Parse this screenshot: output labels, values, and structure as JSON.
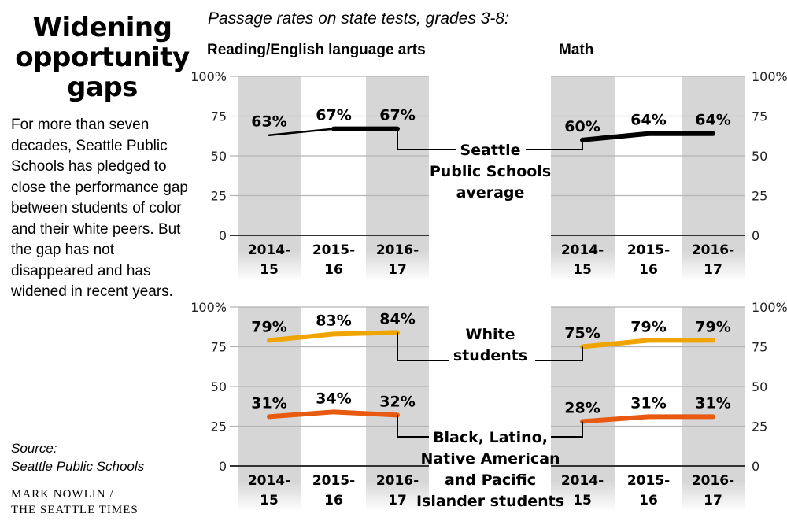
{
  "title": "Widening opportunity gaps",
  "intro": "For more than seven decades, Seattle Public Schools has pledged to close the performance gap between students of color and their white peers. But the gap has not disappeared and has widened in recent years.",
  "source_label": "Source:",
  "source": "Seattle Public Schools",
  "credit_line1": "MARK NOWLIN /",
  "credit_line2": "THE SEATTLE TIMES",
  "subtitle": "Passage rates on state tests, grades 3-8:",
  "colors": {
    "sps": "#000000",
    "white": "#f0a400",
    "poc": "#e85a10",
    "band": "#d6d6d6",
    "grid": "#b5b5b5"
  },
  "callouts": {
    "sps": [
      "Seattle",
      "Public Schools",
      "average"
    ],
    "white": [
      "White",
      "students"
    ],
    "poc": [
      "Black, Latino,",
      "Native American",
      "and Pacific",
      "Islander students"
    ]
  },
  "chart_data": [
    {
      "type": "line",
      "title": "Reading/English language arts",
      "row": "top",
      "side": "left",
      "categories": [
        [
          "2014-",
          "15"
        ],
        [
          "2015-",
          "16"
        ],
        [
          "2016-",
          "17"
        ]
      ],
      "yticks": [
        "100%",
        "75",
        "50",
        "25",
        "0"
      ],
      "ylim": [
        0,
        100
      ],
      "series": [
        {
          "name": "Seattle Public Schools average",
          "key": "sps",
          "values": [
            63,
            67,
            67
          ],
          "labels": [
            "63%",
            "67%",
            "67%"
          ]
        }
      ]
    },
    {
      "type": "line",
      "title": "Math",
      "row": "top",
      "side": "right",
      "categories": [
        [
          "2014-",
          "15"
        ],
        [
          "2015-",
          "16"
        ],
        [
          "2016-",
          "17"
        ]
      ],
      "yticks": [
        "100%",
        "75",
        "50",
        "25",
        "0"
      ],
      "ylim": [
        0,
        100
      ],
      "series": [
        {
          "name": "Seattle Public Schools average",
          "key": "sps",
          "values": [
            60,
            64,
            64
          ],
          "labels": [
            "60%",
            "64%",
            "64%"
          ]
        }
      ]
    },
    {
      "type": "line",
      "title": "",
      "row": "bottom",
      "side": "left",
      "categories": [
        [
          "2014-",
          "15"
        ],
        [
          "2015-",
          "16"
        ],
        [
          "2016-",
          "17"
        ]
      ],
      "yticks": [
        "100%",
        "75",
        "50",
        "25",
        "0"
      ],
      "ylim": [
        0,
        100
      ],
      "series": [
        {
          "name": "White students",
          "key": "white",
          "values": [
            79,
            83,
            84
          ],
          "labels": [
            "79%",
            "83%",
            "84%"
          ]
        },
        {
          "name": "Black, Latino, Native American and Pacific Islander students",
          "key": "poc",
          "values": [
            31,
            34,
            32
          ],
          "labels": [
            "31%",
            "34%",
            "32%"
          ]
        }
      ]
    },
    {
      "type": "line",
      "title": "",
      "row": "bottom",
      "side": "right",
      "categories": [
        [
          "2014-",
          "15"
        ],
        [
          "2015-",
          "16"
        ],
        [
          "2016-",
          "17"
        ]
      ],
      "yticks": [
        "100%",
        "75",
        "50",
        "25",
        "0"
      ],
      "ylim": [
        0,
        100
      ],
      "series": [
        {
          "name": "White students",
          "key": "white",
          "values": [
            75,
            79,
            79
          ],
          "labels": [
            "75%",
            "79%",
            "79%"
          ]
        },
        {
          "name": "Black, Latino, Native American and Pacific Islander students",
          "key": "poc",
          "values": [
            28,
            31,
            31
          ],
          "labels": [
            "28%",
            "31%",
            "31%"
          ]
        }
      ]
    }
  ]
}
